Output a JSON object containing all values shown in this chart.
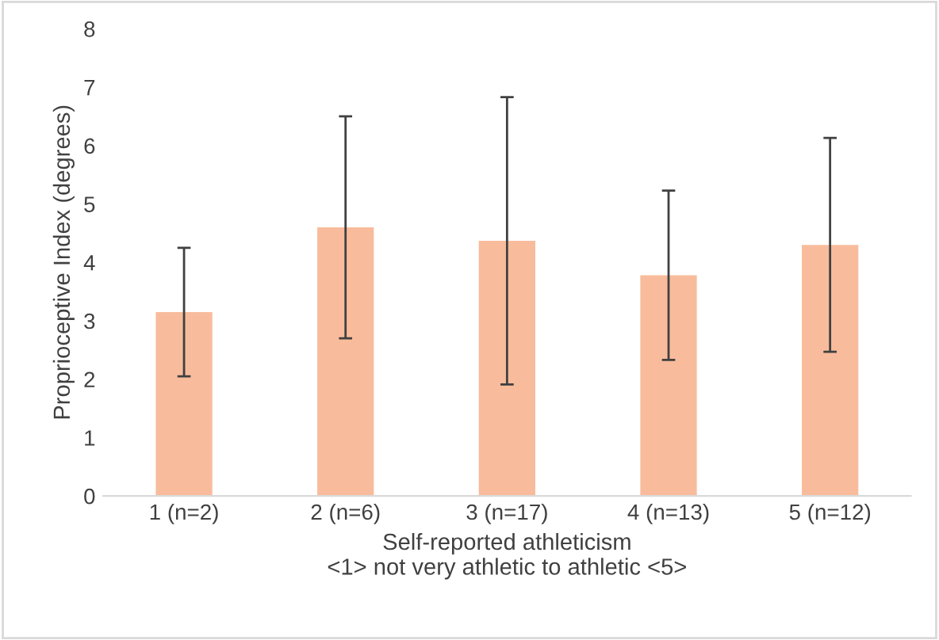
{
  "chart_data": {
    "type": "bar",
    "xlabel": "Self-reported athleticism\n<1> not very athletic to athletic <5>",
    "ylabel": "Proprioceptive Index (degrees)",
    "categories": [
      "1 (n=2)",
      "2 (n=6)",
      "3 (n=17)",
      "4 (n=13)",
      "5 (n=12)"
    ],
    "values": [
      3.15,
      4.6,
      4.37,
      3.78,
      4.3
    ],
    "errors": [
      1.1,
      1.9,
      2.46,
      1.45,
      1.83
    ],
    "color": "#f8bc9c",
    "ylim": [
      0,
      8
    ],
    "yticks": [
      0,
      1,
      2,
      3,
      4,
      5,
      6,
      7,
      8
    ],
    "grid": false
  }
}
